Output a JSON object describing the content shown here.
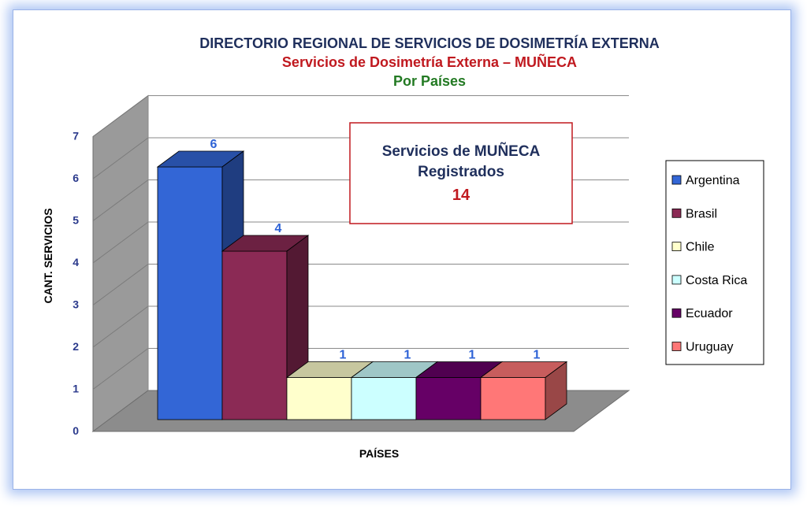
{
  "chart_data": {
    "type": "bar",
    "title": "DIRECTORIO REGIONAL DE SERVICIOS DE DOSIMETRÍA EXTERNA",
    "subtitle": "Servicios de Dosimetría Externa – MUÑECA",
    "subtitle2": "Por Países",
    "xlabel": "PAÍSES",
    "ylabel": "CANT. SERVICIOS",
    "ylim": [
      0,
      7
    ],
    "yticks": [
      "0",
      "1",
      "2",
      "3",
      "4",
      "5",
      "6",
      "7"
    ],
    "grid": true,
    "legend_position": "right",
    "series": [
      {
        "name": "Argentina",
        "value": 6,
        "label": "6",
        "color": "#3366d6"
      },
      {
        "name": "Brasil",
        "value": 4,
        "label": "4",
        "color": "#8b2a55"
      },
      {
        "name": "Chile",
        "value": 1,
        "label": "1",
        "color": "#ffffcc"
      },
      {
        "name": "Costa Rica",
        "value": 1,
        "label": "1",
        "color": "#ccffff"
      },
      {
        "name": "Ecuador",
        "value": 1,
        "label": "1",
        "color": "#660066"
      },
      {
        "name": "Uruguay",
        "value": 1,
        "label": "1",
        "color": "#ff7777"
      }
    ],
    "annotation": {
      "line1": "Servicios de MUÑECA",
      "line2": "Registrados",
      "value": "14"
    }
  },
  "colors": {
    "title": "#1f2f5c",
    "subtitle": "#c0191f",
    "subtitle2": "#237a23",
    "data_label": "#2d62d6",
    "tick_label": "#2b3a8c",
    "box_border": "#c0191f",
    "box_value": "#c0191f"
  }
}
